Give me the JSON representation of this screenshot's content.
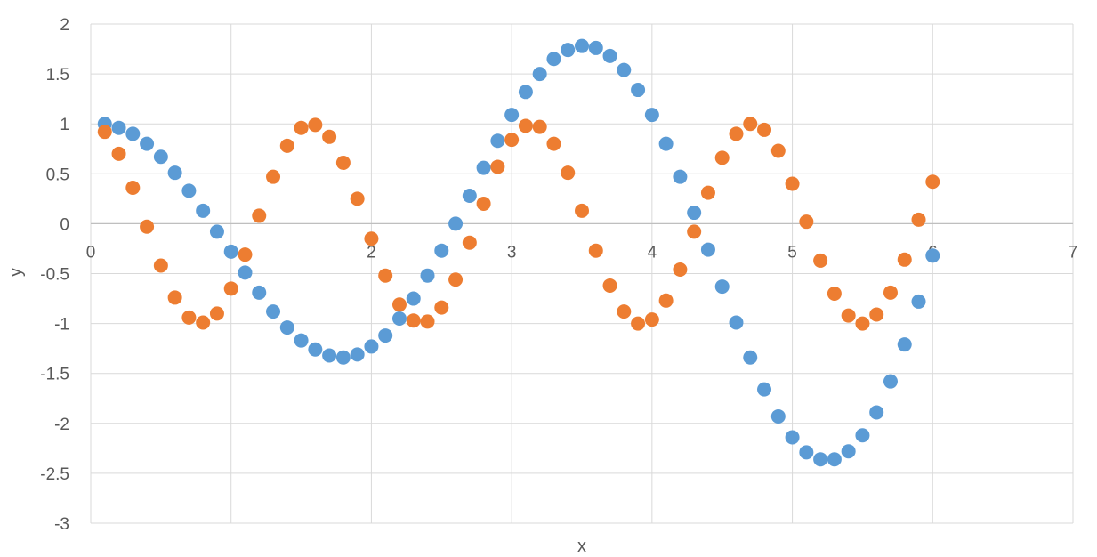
{
  "chart_data": {
    "type": "scatter",
    "title": "",
    "xlabel": "x",
    "ylabel": "y",
    "xlim": [
      0,
      7
    ],
    "ylim": [
      -3,
      2
    ],
    "xticks": [
      0,
      1,
      2,
      3,
      4,
      5,
      6,
      7
    ],
    "yticks": [
      -3,
      -2.5,
      -2,
      -1.5,
      -1,
      -0.5,
      0,
      0.5,
      1,
      1.5,
      2
    ],
    "grid": true,
    "legend": "none",
    "series": [
      {
        "color": "#5B9BD5",
        "x": [
          0.1,
          0.2,
          0.3,
          0.4,
          0.5,
          0.6,
          0.7,
          0.8,
          0.9,
          1.0,
          1.1,
          1.2,
          1.3,
          1.4,
          1.5,
          1.6,
          1.7,
          1.8,
          1.9,
          2.0,
          2.1,
          2.2,
          2.3,
          2.4,
          2.5,
          2.6,
          2.7,
          2.8,
          2.9,
          3.0,
          3.1,
          3.2,
          3.3,
          3.4,
          3.5,
          3.6,
          3.7,
          3.8,
          3.9,
          4.0,
          4.1,
          4.2,
          4.3,
          4.4,
          4.5,
          4.6,
          4.7,
          4.8,
          4.9,
          5.0,
          5.1,
          5.2,
          5.3,
          5.4,
          5.5,
          5.6,
          5.7,
          5.8,
          5.9,
          6.0
        ],
        "y": [
          1.0,
          0.96,
          0.9,
          0.8,
          0.67,
          0.51,
          0.33,
          0.13,
          -0.08,
          -0.28,
          -0.49,
          -0.69,
          -0.88,
          -1.04,
          -1.17,
          -1.26,
          -1.32,
          -1.34,
          -1.31,
          -1.23,
          -1.12,
          -0.95,
          -0.75,
          -0.52,
          -0.27,
          0.0,
          0.28,
          0.56,
          0.83,
          1.09,
          1.32,
          1.5,
          1.65,
          1.74,
          1.78,
          1.76,
          1.68,
          1.54,
          1.34,
          1.09,
          0.8,
          0.47,
          0.11,
          -0.26,
          -0.63,
          -0.99,
          -1.34,
          -1.66,
          -1.93,
          -2.14,
          -2.29,
          -2.36,
          -2.36,
          -2.28,
          -2.12,
          -1.89,
          -1.58,
          -1.21,
          -0.78,
          -0.32
        ]
      },
      {
        "color": "#ED7D31",
        "x": [
          0.1,
          0.2,
          0.3,
          0.4,
          0.5,
          0.6,
          0.7,
          0.8,
          0.9,
          1.0,
          1.1,
          1.2,
          1.3,
          1.4,
          1.5,
          1.6,
          1.7,
          1.8,
          1.9,
          2.0,
          2.1,
          2.2,
          2.3,
          2.4,
          2.5,
          2.6,
          2.7,
          2.8,
          2.9,
          3.0,
          3.1,
          3.2,
          3.3,
          3.4,
          3.5,
          3.6,
          3.7,
          3.8,
          3.9,
          4.0,
          4.1,
          4.2,
          4.3,
          4.4,
          4.5,
          4.6,
          4.7,
          4.8,
          4.9,
          5.0,
          5.1,
          5.2,
          5.3,
          5.4,
          5.5,
          5.6,
          5.7,
          5.8,
          5.9,
          6.0
        ],
        "y": [
          0.92,
          0.7,
          0.36,
          -0.03,
          -0.42,
          -0.74,
          -0.94,
          -0.99,
          -0.9,
          -0.65,
          -0.31,
          0.08,
          0.47,
          0.78,
          0.96,
          0.99,
          0.87,
          0.61,
          0.25,
          -0.15,
          -0.52,
          -0.81,
          -0.97,
          -0.98,
          -0.84,
          -0.56,
          -0.19,
          0.2,
          0.57,
          0.84,
          0.98,
          0.97,
          0.8,
          0.51,
          0.13,
          -0.27,
          -0.62,
          -0.88,
          -1.0,
          -0.96,
          -0.77,
          -0.46,
          -0.08,
          0.31,
          0.66,
          0.9,
          1.0,
          0.94,
          0.73,
          0.4,
          0.02,
          -0.37,
          -0.7,
          -0.92,
          -1.0,
          -0.91,
          -0.69,
          -0.36,
          0.04,
          0.42
        ]
      }
    ]
  }
}
